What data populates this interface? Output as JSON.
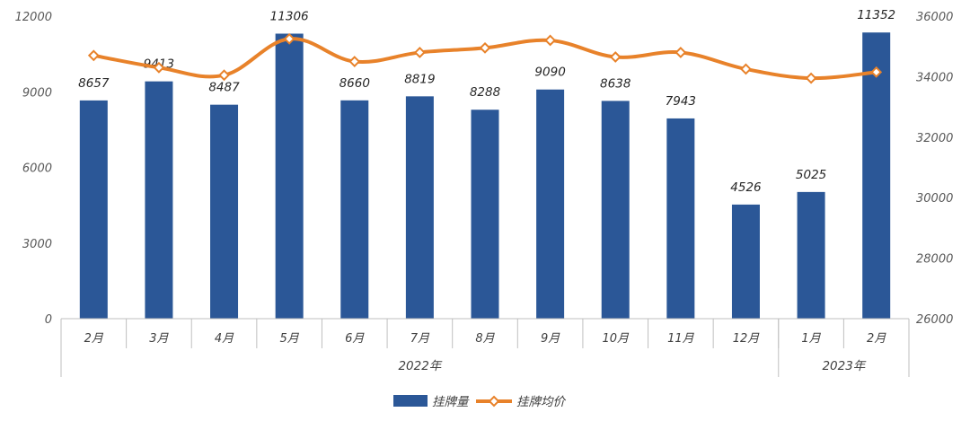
{
  "chart_data": {
    "type": "bar",
    "categories": [
      "2月",
      "3月",
      "4月",
      "5月",
      "6月",
      "7月",
      "8月",
      "9月",
      "10月",
      "11月",
      "12月",
      "1月",
      "2月"
    ],
    "groups": [
      {
        "label": "2022年",
        "count": 11
      },
      {
        "label": "2023年",
        "count": 2
      }
    ],
    "series": [
      {
        "name": "挂牌量",
        "type": "bar",
        "axis": "left",
        "values": [
          8657,
          9413,
          8487,
          11306,
          8660,
          8819,
          8288,
          9090,
          8638,
          7943,
          4526,
          5025,
          11352
        ],
        "labels": [
          "8657",
          "9413",
          "8487",
          "11306",
          "8660",
          "8819",
          "8288",
          "9090",
          "8638",
          "7943",
          "4526",
          "5025",
          "11352"
        ]
      },
      {
        "name": "挂牌均价",
        "type": "line",
        "axis": "right",
        "values": [
          34700,
          34300,
          34050,
          35250,
          34500,
          34800,
          34950,
          35200,
          34650,
          34800,
          34250,
          33950,
          34150
        ]
      }
    ],
    "y_left": {
      "min": 0,
      "max": 12000,
      "ticks": [
        "0",
        "3000",
        "6000",
        "9000",
        "12000"
      ]
    },
    "y_right": {
      "min": 26000,
      "max": 36000,
      "ticks": [
        "26000",
        "28000",
        "30000",
        "32000",
        "34000",
        "36000"
      ]
    },
    "legend_position": "bottom",
    "colors": {
      "bar": "#2b5797",
      "line": "#e8822a",
      "marker_fill": "#ffffff"
    }
  }
}
